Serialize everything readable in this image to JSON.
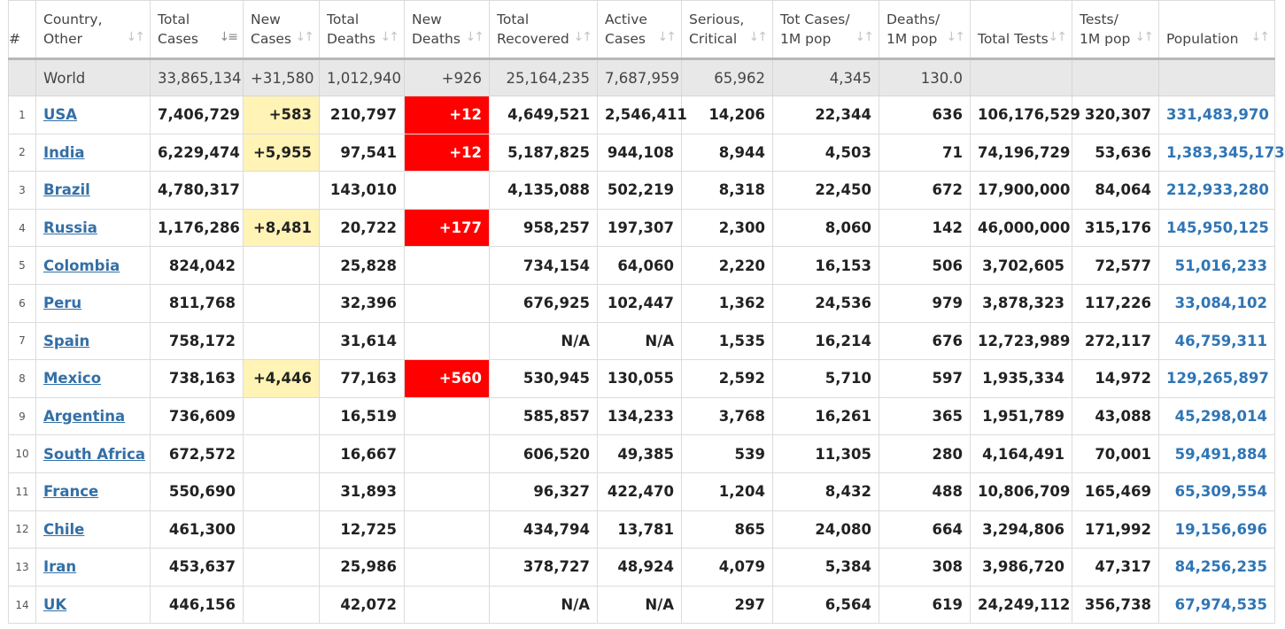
{
  "columns": [
    {
      "key": "idx",
      "label": "#",
      "sort": false
    },
    {
      "key": "country",
      "label": "Country, Other",
      "sort": "inactive"
    },
    {
      "key": "total_cases",
      "label": "Total Cases",
      "sort": "active"
    },
    {
      "key": "new_cases",
      "label": "New Cases",
      "sort": "inactive"
    },
    {
      "key": "total_deaths",
      "label": "Total Deaths",
      "sort": "inactive"
    },
    {
      "key": "new_deaths",
      "label": "New Deaths",
      "sort": "inactive"
    },
    {
      "key": "total_recovered",
      "label": "Total Recovered",
      "sort": "inactive"
    },
    {
      "key": "active_cases",
      "label": "Active Cases",
      "sort": "inactive"
    },
    {
      "key": "serious",
      "label": "Serious, Critical",
      "sort": "inactive"
    },
    {
      "key": "cases_per_1m",
      "label": "Tot Cases/ 1M pop",
      "sort": "inactive"
    },
    {
      "key": "deaths_per_1m",
      "label": "Deaths/ 1M pop",
      "sort": "inactive"
    },
    {
      "key": "total_tests",
      "label": "Total Tests",
      "sort": "inactive"
    },
    {
      "key": "tests_per_1m",
      "label": "Tests/ 1M pop",
      "sort": "inactive"
    },
    {
      "key": "population",
      "label": "Population",
      "sort": "inactive"
    }
  ],
  "icons": {
    "sort_inactive": "sort-arrows-icon",
    "sort_active": "sort-descending-icon"
  },
  "colors": {
    "new_cases_highlight": "#fff3b5",
    "new_deaths_highlight": "#ff0000",
    "link": "#336fa6",
    "population": "#2f75b5"
  },
  "world": {
    "country": "World",
    "total_cases": "33,865,134",
    "new_cases": "+31,580",
    "total_deaths": "1,012,940",
    "new_deaths": "+926",
    "total_recovered": "25,164,235",
    "active_cases": "7,687,959",
    "serious": "65,962",
    "cases_per_1m": "4,345",
    "deaths_per_1m": "130.0",
    "total_tests": "",
    "tests_per_1m": "",
    "population": ""
  },
  "rows": [
    {
      "idx": "1",
      "country": "USA",
      "total_cases": "7,406,729",
      "new_cases": "+583",
      "total_deaths": "210,797",
      "new_deaths": "+12",
      "total_recovered": "4,649,521",
      "active_cases": "2,546,411",
      "serious": "14,206",
      "cases_per_1m": "22,344",
      "deaths_per_1m": "636",
      "total_tests": "106,176,529",
      "tests_per_1m": "320,307",
      "population": "331,483,970"
    },
    {
      "idx": "2",
      "country": "India",
      "total_cases": "6,229,474",
      "new_cases": "+5,955",
      "total_deaths": "97,541",
      "new_deaths": "+12",
      "total_recovered": "5,187,825",
      "active_cases": "944,108",
      "serious": "8,944",
      "cases_per_1m": "4,503",
      "deaths_per_1m": "71",
      "total_tests": "74,196,729",
      "tests_per_1m": "53,636",
      "population": "1,383,345,173"
    },
    {
      "idx": "3",
      "country": "Brazil",
      "total_cases": "4,780,317",
      "new_cases": "",
      "total_deaths": "143,010",
      "new_deaths": "",
      "total_recovered": "4,135,088",
      "active_cases": "502,219",
      "serious": "8,318",
      "cases_per_1m": "22,450",
      "deaths_per_1m": "672",
      "total_tests": "17,900,000",
      "tests_per_1m": "84,064",
      "population": "212,933,280"
    },
    {
      "idx": "4",
      "country": "Russia",
      "total_cases": "1,176,286",
      "new_cases": "+8,481",
      "total_deaths": "20,722",
      "new_deaths": "+177",
      "total_recovered": "958,257",
      "active_cases": "197,307",
      "serious": "2,300",
      "cases_per_1m": "8,060",
      "deaths_per_1m": "142",
      "total_tests": "46,000,000",
      "tests_per_1m": "315,176",
      "population": "145,950,125"
    },
    {
      "idx": "5",
      "country": "Colombia",
      "total_cases": "824,042",
      "new_cases": "",
      "total_deaths": "25,828",
      "new_deaths": "",
      "total_recovered": "734,154",
      "active_cases": "64,060",
      "serious": "2,220",
      "cases_per_1m": "16,153",
      "deaths_per_1m": "506",
      "total_tests": "3,702,605",
      "tests_per_1m": "72,577",
      "population": "51,016,233"
    },
    {
      "idx": "6",
      "country": "Peru",
      "total_cases": "811,768",
      "new_cases": "",
      "total_deaths": "32,396",
      "new_deaths": "",
      "total_recovered": "676,925",
      "active_cases": "102,447",
      "serious": "1,362",
      "cases_per_1m": "24,536",
      "deaths_per_1m": "979",
      "total_tests": "3,878,323",
      "tests_per_1m": "117,226",
      "population": "33,084,102"
    },
    {
      "idx": "7",
      "country": "Spain",
      "total_cases": "758,172",
      "new_cases": "",
      "total_deaths": "31,614",
      "new_deaths": "",
      "total_recovered": "N/A",
      "active_cases": "N/A",
      "serious": "1,535",
      "cases_per_1m": "16,214",
      "deaths_per_1m": "676",
      "total_tests": "12,723,989",
      "tests_per_1m": "272,117",
      "population": "46,759,311"
    },
    {
      "idx": "8",
      "country": "Mexico",
      "total_cases": "738,163",
      "new_cases": "+4,446",
      "total_deaths": "77,163",
      "new_deaths": "+560",
      "total_recovered": "530,945",
      "active_cases": "130,055",
      "serious": "2,592",
      "cases_per_1m": "5,710",
      "deaths_per_1m": "597",
      "total_tests": "1,935,334",
      "tests_per_1m": "14,972",
      "population": "129,265,897"
    },
    {
      "idx": "9",
      "country": "Argentina",
      "total_cases": "736,609",
      "new_cases": "",
      "total_deaths": "16,519",
      "new_deaths": "",
      "total_recovered": "585,857",
      "active_cases": "134,233",
      "serious": "3,768",
      "cases_per_1m": "16,261",
      "deaths_per_1m": "365",
      "total_tests": "1,951,789",
      "tests_per_1m": "43,088",
      "population": "45,298,014"
    },
    {
      "idx": "10",
      "country": "South Africa",
      "total_cases": "672,572",
      "new_cases": "",
      "total_deaths": "16,667",
      "new_deaths": "",
      "total_recovered": "606,520",
      "active_cases": "49,385",
      "serious": "539",
      "cases_per_1m": "11,305",
      "deaths_per_1m": "280",
      "total_tests": "4,164,491",
      "tests_per_1m": "70,001",
      "population": "59,491,884"
    },
    {
      "idx": "11",
      "country": "France",
      "total_cases": "550,690",
      "new_cases": "",
      "total_deaths": "31,893",
      "new_deaths": "",
      "total_recovered": "96,327",
      "active_cases": "422,470",
      "serious": "1,204",
      "cases_per_1m": "8,432",
      "deaths_per_1m": "488",
      "total_tests": "10,806,709",
      "tests_per_1m": "165,469",
      "population": "65,309,554"
    },
    {
      "idx": "12",
      "country": "Chile",
      "total_cases": "461,300",
      "new_cases": "",
      "total_deaths": "12,725",
      "new_deaths": "",
      "total_recovered": "434,794",
      "active_cases": "13,781",
      "serious": "865",
      "cases_per_1m": "24,080",
      "deaths_per_1m": "664",
      "total_tests": "3,294,806",
      "tests_per_1m": "171,992",
      "population": "19,156,696"
    },
    {
      "idx": "13",
      "country": "Iran",
      "total_cases": "453,637",
      "new_cases": "",
      "total_deaths": "25,986",
      "new_deaths": "",
      "total_recovered": "378,727",
      "active_cases": "48,924",
      "serious": "4,079",
      "cases_per_1m": "5,384",
      "deaths_per_1m": "308",
      "total_tests": "3,986,720",
      "tests_per_1m": "47,317",
      "population": "84,256,235"
    },
    {
      "idx": "14",
      "country": "UK",
      "total_cases": "446,156",
      "new_cases": "",
      "total_deaths": "42,072",
      "new_deaths": "",
      "total_recovered": "N/A",
      "active_cases": "N/A",
      "serious": "297",
      "cases_per_1m": "6,564",
      "deaths_per_1m": "619",
      "total_tests": "24,249,112",
      "tests_per_1m": "356,738",
      "population": "67,974,535"
    }
  ]
}
